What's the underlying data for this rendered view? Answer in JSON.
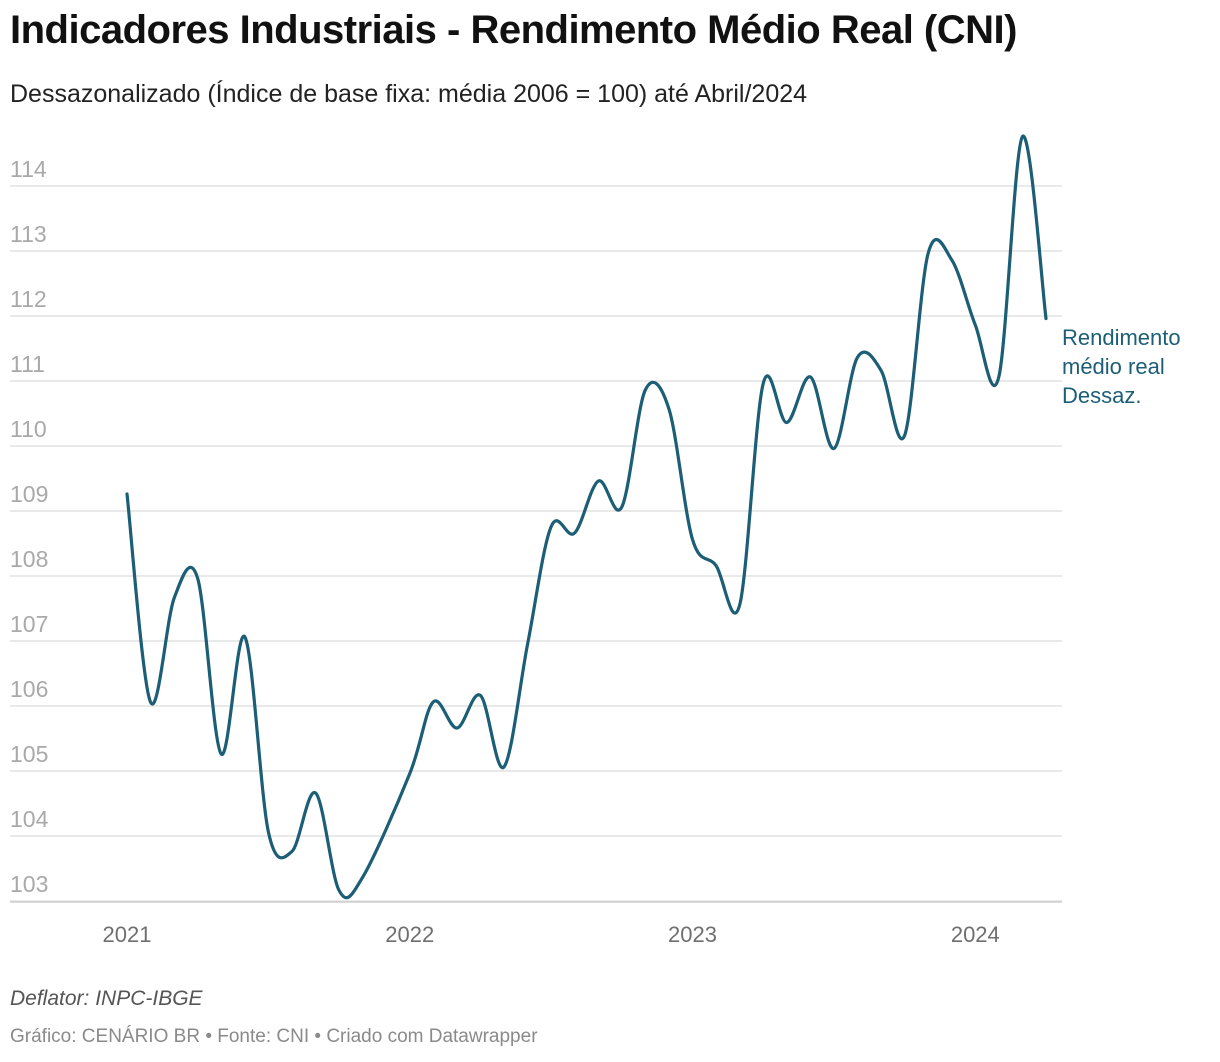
{
  "chart_data": {
    "type": "line",
    "title": "Indicadores Industriais - Rendimento Médio Real (CNI)",
    "subtitle": "Dessazonalizado (Índice de base fixa: média 2006 = 100) até Abril/2024",
    "xlabel": "",
    "ylabel": "",
    "ylim": [
      102.7,
      114.5
    ],
    "yticks": [
      103,
      104,
      105,
      106,
      107,
      108,
      109,
      110,
      111,
      112,
      113,
      114
    ],
    "xticks": [
      {
        "label": "2021",
        "x": 2021.0
      },
      {
        "label": "2022",
        "x": 2022.0
      },
      {
        "label": "2023",
        "x": 2023.0
      },
      {
        "label": "2024",
        "x": 2024.0
      }
    ],
    "xlim": [
      2020.92,
      2024.3
    ],
    "grid": true,
    "legend": "inline-right",
    "series": [
      {
        "name": "Rendimento médio real Dessaz.",
        "label_lines": [
          "Rendimento",
          "médio real",
          "Dessaz."
        ],
        "color": "#1b5e76",
        "x": [
          2021.0,
          2021.083,
          2021.167,
          2021.25,
          2021.333,
          2021.417,
          2021.5,
          2021.583,
          2021.667,
          2021.75,
          2021.833,
          2022.0,
          2022.083,
          2022.167,
          2022.25,
          2022.333,
          2022.417,
          2022.5,
          2022.583,
          2022.667,
          2022.75,
          2022.833,
          2022.917,
          2023.0,
          2023.083,
          2023.167,
          2023.25,
          2023.333,
          2023.417,
          2023.5,
          2023.583,
          2023.667,
          2023.75,
          2023.833,
          2023.917,
          2024.0,
          2024.083,
          2024.167,
          2024.25
        ],
        "values": [
          109.0,
          105.8,
          107.4,
          107.7,
          105.0,
          106.8,
          103.8,
          103.5,
          104.4,
          102.9,
          103.1,
          104.7,
          105.8,
          105.4,
          105.9,
          104.8,
          106.7,
          108.5,
          108.4,
          109.2,
          108.8,
          110.6,
          110.3,
          108.3,
          107.9,
          107.3,
          110.7,
          110.1,
          110.8,
          109.7,
          111.1,
          110.9,
          109.9,
          112.7,
          112.6,
          111.6,
          110.8,
          114.5,
          111.7
        ]
      }
    ]
  },
  "notes": "Deflator: INPC-IBGE",
  "credits": "Gráfico: CENÁRIO BR • Fonte: CNI • Criado com Datawrapper"
}
